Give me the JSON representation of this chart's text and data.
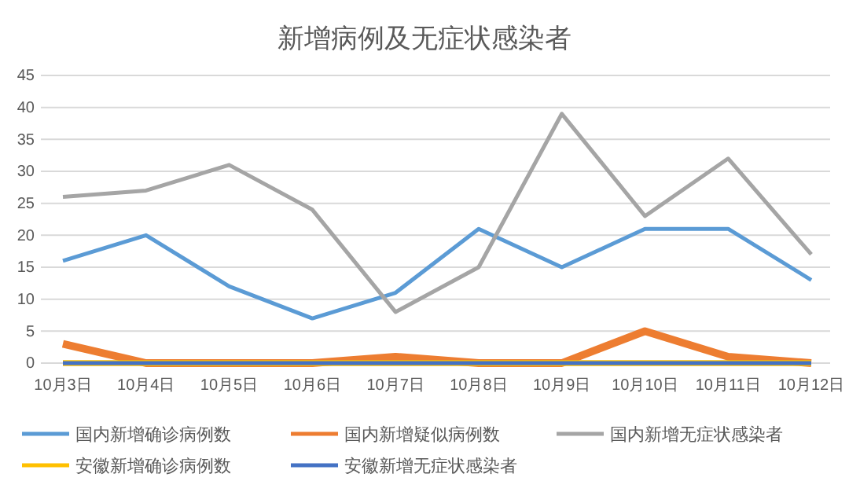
{
  "chart_data": {
    "type": "line",
    "title": "新增病例及无症状感染者",
    "categories": [
      "10月3日",
      "10月4日",
      "10月5日",
      "10月6日",
      "10月7日",
      "10月8日",
      "10月9日",
      "10月10日",
      "10月11日",
      "10月12日"
    ],
    "series": [
      {
        "name": "国内新增确诊病例数",
        "color": "#5b9bd5",
        "values": [
          16,
          20,
          12,
          7,
          11,
          21,
          15,
          21,
          21,
          13
        ]
      },
      {
        "name": "国内新增疑似病例数",
        "color": "#ed7d31",
        "values": [
          3,
          0,
          0,
          0,
          1,
          0,
          0,
          5,
          1,
          0
        ]
      },
      {
        "name": "国内新增无症状感染者",
        "color": "#a5a5a5",
        "values": [
          26,
          27,
          31,
          24,
          8,
          15,
          39,
          23,
          32,
          17
        ]
      },
      {
        "name": "安徽新增确诊病例数",
        "color": "#ffc000",
        "values": [
          0,
          0,
          0,
          0,
          0,
          0,
          0,
          0,
          0,
          0
        ]
      },
      {
        "name": "安徽新增无症状感染者",
        "color": "#4472c4",
        "values": [
          0,
          0,
          0,
          0,
          0,
          0,
          0,
          0,
          0,
          0
        ]
      }
    ],
    "ylim": [
      0,
      45
    ],
    "yticks": [
      0,
      5,
      10,
      15,
      20,
      25,
      30,
      35,
      40,
      45
    ],
    "grid": "y",
    "legend": "bottom",
    "marker": "none",
    "line_style": "solid"
  }
}
